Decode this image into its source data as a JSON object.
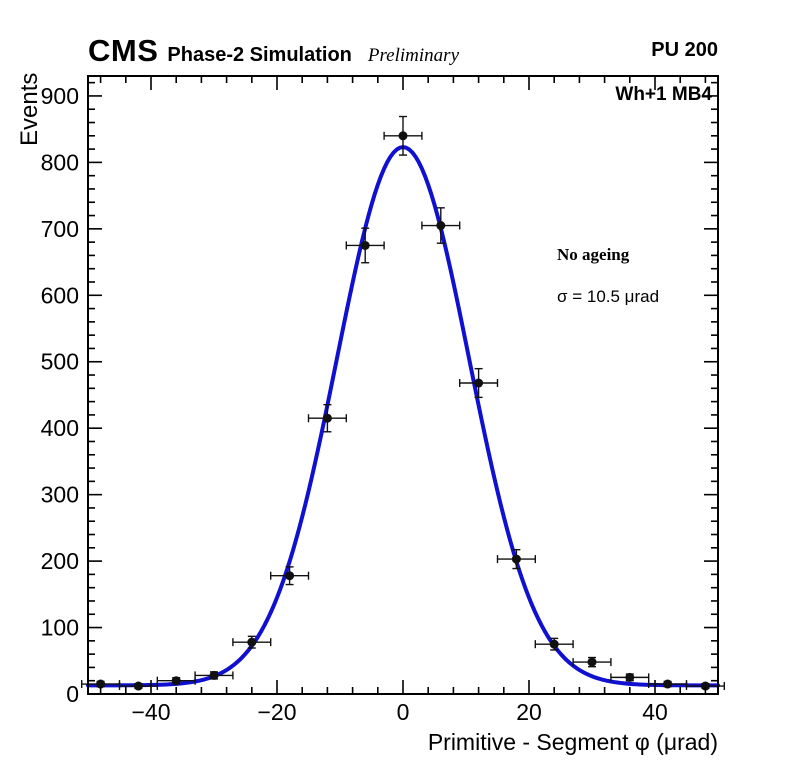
{
  "header": {
    "experiment": "CMS",
    "subtitle": "Phase-2 Simulation",
    "preliminary": "Preliminary",
    "pileup": "PU 200"
  },
  "plot_labels": {
    "region": "Wh+1 MB4",
    "annotation_bold": "No ageing",
    "annotation_sigma": "σ = 10.5 μrad"
  },
  "chart_data": {
    "type": "scatter",
    "title": "",
    "xlabel": "Primitive - Segment φ (μrad)",
    "ylabel": "Events",
    "xlim": [
      -50,
      50
    ],
    "ylim": [
      0,
      930
    ],
    "grid": false,
    "legend_position": "none",
    "x_major_ticks": [
      -40,
      -20,
      0,
      20,
      40
    ],
    "x_minor_step": 4,
    "y_major_ticks": [
      0,
      100,
      200,
      300,
      400,
      500,
      600,
      700,
      800,
      900
    ],
    "y_minor_step": 20,
    "marker_color": "#111111",
    "points": [
      {
        "x": -48,
        "y": 15,
        "xerr": 3,
        "yerr": 4
      },
      {
        "x": -42,
        "y": 12,
        "xerr": 3,
        "yerr": 3.5
      },
      {
        "x": -36,
        "y": 20,
        "xerr": 3,
        "yerr": 4.5
      },
      {
        "x": -30,
        "y": 28,
        "xerr": 3,
        "yerr": 5.3
      },
      {
        "x": -24,
        "y": 78,
        "xerr": 3,
        "yerr": 8.8
      },
      {
        "x": -18,
        "y": 178,
        "xerr": 3,
        "yerr": 13.3
      },
      {
        "x": -12,
        "y": 415,
        "xerr": 3,
        "yerr": 20.4
      },
      {
        "x": -6,
        "y": 675,
        "xerr": 3,
        "yerr": 26
      },
      {
        "x": 0,
        "y": 840,
        "xerr": 3,
        "yerr": 29
      },
      {
        "x": 6,
        "y": 705,
        "xerr": 3,
        "yerr": 26.6
      },
      {
        "x": 12,
        "y": 468,
        "xerr": 3,
        "yerr": 21.6
      },
      {
        "x": 18,
        "y": 203,
        "xerr": 3,
        "yerr": 14.2
      },
      {
        "x": 24,
        "y": 75,
        "xerr": 3,
        "yerr": 8.7
      },
      {
        "x": 30,
        "y": 48,
        "xerr": 3,
        "yerr": 6.9
      },
      {
        "x": 36,
        "y": 25,
        "xerr": 3,
        "yerr": 5
      },
      {
        "x": 42,
        "y": 15,
        "xerr": 3,
        "yerr": 3.9
      },
      {
        "x": 48,
        "y": 12,
        "xerr": 3,
        "yerr": 3.5
      }
    ],
    "fit": {
      "type": "gaussian",
      "mean": 0,
      "sigma": 10.5,
      "amplitude": 810,
      "baseline": 13,
      "color": "#1010d0",
      "line_width": 4
    }
  }
}
